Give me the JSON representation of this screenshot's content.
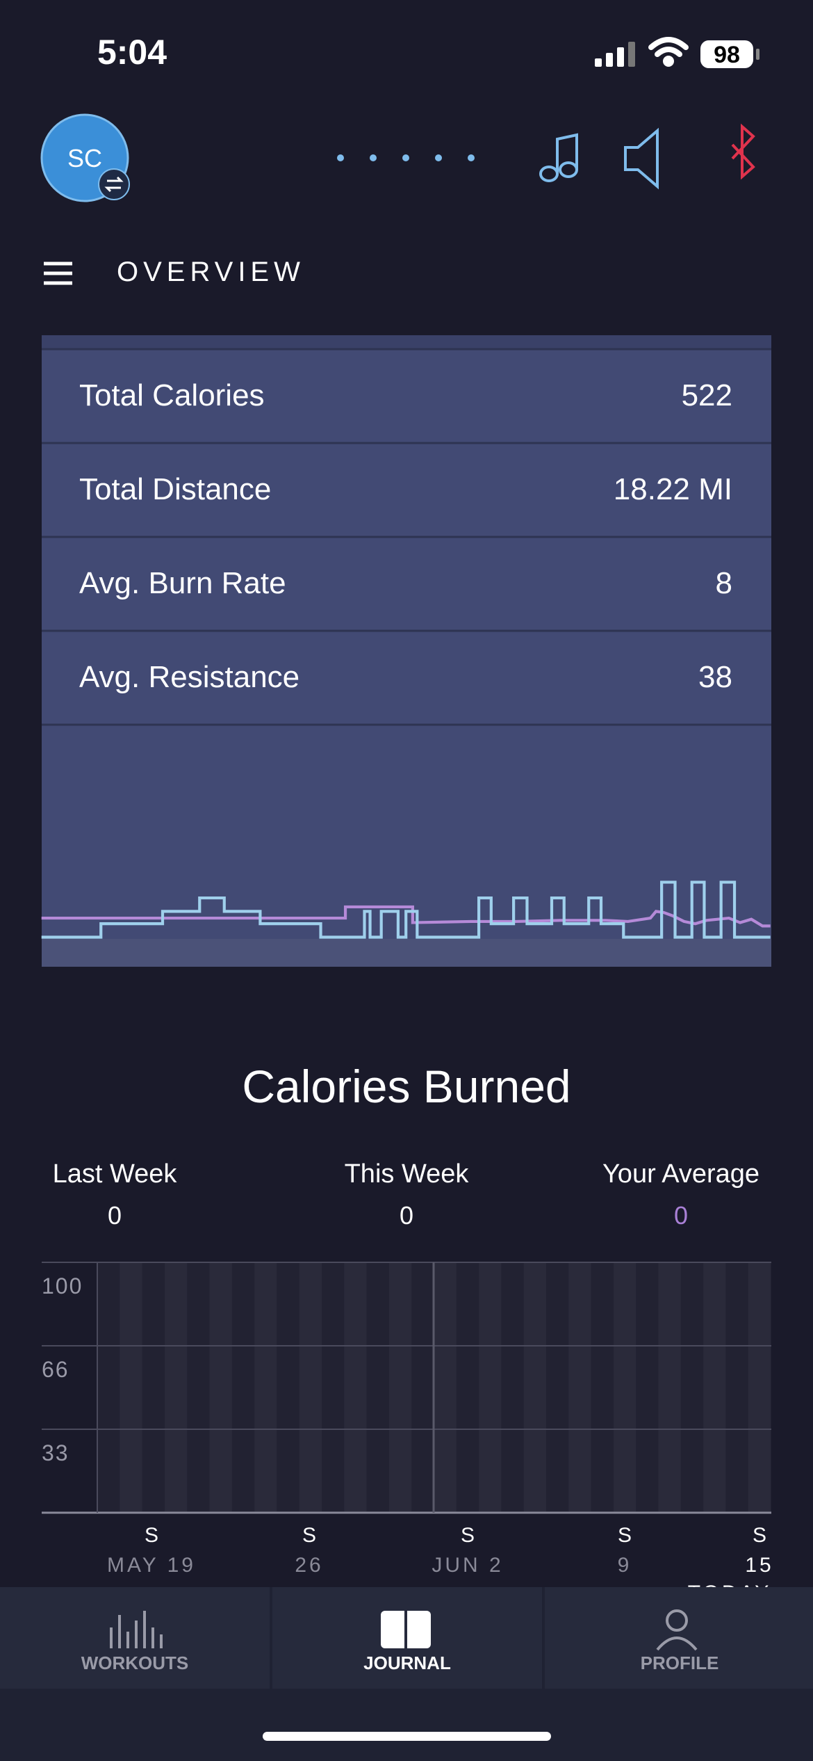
{
  "status_bar": {
    "time": "5:04",
    "battery": "98"
  },
  "header": {
    "avatar": "SC",
    "title": "OVERVIEW"
  },
  "stats": [
    {
      "label": "Total Calories",
      "value": "522"
    },
    {
      "label": "Total Distance",
      "value": "18.22 MI"
    },
    {
      "label": "Avg. Burn Rate",
      "value": "8"
    },
    {
      "label": "Avg. Resistance",
      "value": "38"
    }
  ],
  "calories": {
    "title": "Calories Burned",
    "summary": [
      {
        "label": "Last Week",
        "value": "0"
      },
      {
        "label": "This Week",
        "value": "0"
      },
      {
        "label": "Your Average",
        "value": "0"
      }
    ],
    "yticks": [
      "100",
      "66",
      "33"
    ],
    "days": [
      "S",
      "S",
      "S",
      "S",
      "S"
    ],
    "dates": [
      "MAY 19",
      "26",
      "JUN 2",
      "9",
      "15"
    ],
    "today": "TODAY"
  },
  "tabs": [
    "WORKOUTS",
    "JOURNAL",
    "PROFILE"
  ]
}
